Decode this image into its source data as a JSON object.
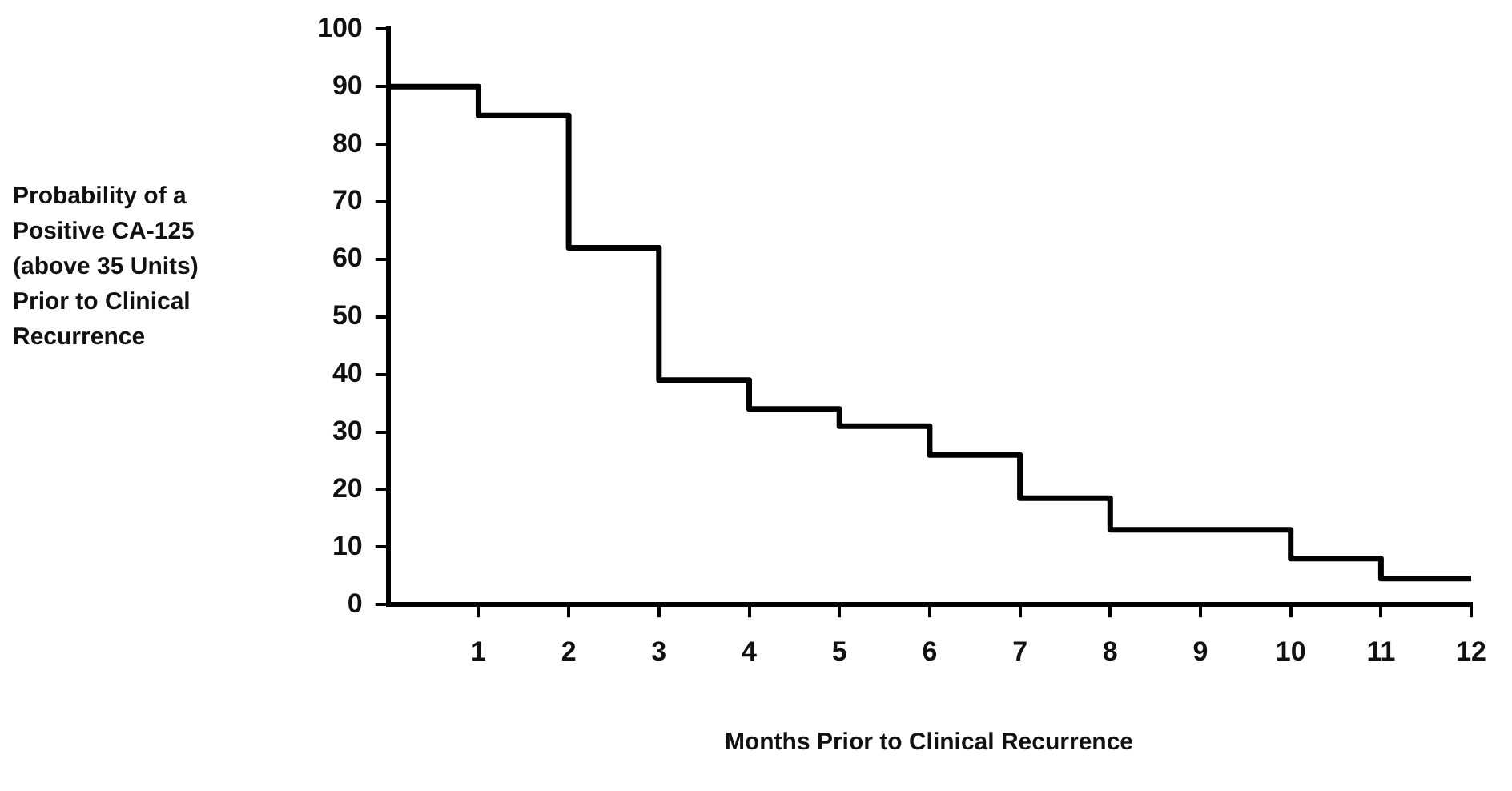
{
  "chart_data": {
    "type": "step",
    "xlabel": "Months Prior to Clinical Recurrence",
    "ylabel": "Probability of a\nPositive CA-125\n(above 35 Units)\nPrior to Clinical\nRecurrence",
    "x": [
      0,
      1,
      2,
      3,
      4,
      5,
      6,
      7,
      8,
      9,
      10,
      11,
      12
    ],
    "series": [
      {
        "color": "#000000",
        "values": [
          90,
          85,
          62,
          39,
          34,
          31,
          26,
          18.5,
          13,
          13,
          8,
          4.5,
          4.5
        ]
      }
    ],
    "xlim": [
      0,
      12
    ],
    "xticks": [
      1,
      2,
      3,
      4,
      5,
      6,
      7,
      8,
      9,
      10,
      11,
      12
    ],
    "ylim": [
      0,
      100
    ],
    "yticks": [
      0,
      10,
      20,
      30,
      40,
      50,
      60,
      70,
      80,
      90,
      100
    ],
    "grid": false,
    "legend": false,
    "marker": "none",
    "line_style": "solid"
  }
}
